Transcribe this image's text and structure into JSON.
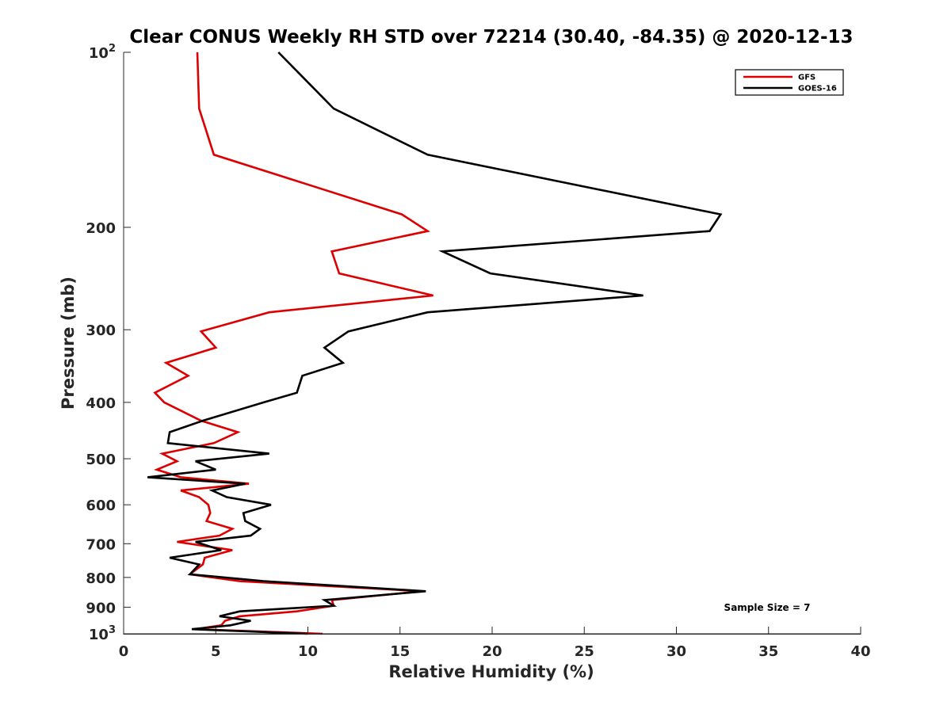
{
  "chart_data": {
    "type": "line",
    "title": "Clear CONUS Weekly RH STD over 72214 (30.40, -84.35) @ 2020-12-13",
    "xlabel": "Relative Humidity (%)",
    "ylabel": "Pressure (mb)",
    "xlim": [
      0,
      40
    ],
    "ylim": [
      100,
      1000
    ],
    "yscale": "log",
    "y_reversed": true,
    "x_ticks": [
      0,
      5,
      10,
      15,
      20,
      25,
      30,
      35,
      40
    ],
    "x_tick_labels": [
      "0",
      "5",
      "10",
      "15",
      "20",
      "25",
      "30",
      "35",
      "40"
    ],
    "y_ticks": [
      100,
      200,
      300,
      400,
      500,
      600,
      700,
      800,
      900,
      1000
    ],
    "y_tick_labels": [
      {
        "base": "10",
        "sup": "2"
      },
      "200",
      "300",
      "400",
      "500",
      "600",
      "700",
      "800",
      "900",
      {
        "base": "10",
        "sup": "3"
      }
    ],
    "legend_position": "top-right",
    "annotation": "Sample Size = 7",
    "series": [
      {
        "name": "GFS",
        "color": "#dd0000",
        "points": [
          [
            4.0,
            100
          ],
          [
            4.1,
            125
          ],
          [
            4.9,
            150
          ],
          [
            15.1,
            190
          ],
          [
            16.5,
            203
          ],
          [
            11.3,
            220
          ],
          [
            11.7,
            240
          ],
          [
            16.8,
            262
          ],
          [
            7.9,
            280
          ],
          [
            4.2,
            302
          ],
          [
            5.0,
            322
          ],
          [
            2.3,
            342
          ],
          [
            3.5,
            360
          ],
          [
            1.7,
            385
          ],
          [
            2.2,
            400
          ],
          [
            4.2,
            430
          ],
          [
            6.2,
            450
          ],
          [
            4.9,
            470
          ],
          [
            2.1,
            490
          ],
          [
            2.9,
            505
          ],
          [
            1.8,
            522
          ],
          [
            3.1,
            538
          ],
          [
            6.8,
            552
          ],
          [
            3.1,
            567
          ],
          [
            4.1,
            582
          ],
          [
            4.6,
            600
          ],
          [
            4.7,
            620
          ],
          [
            4.5,
            640
          ],
          [
            5.9,
            660
          ],
          [
            5.2,
            678
          ],
          [
            2.9,
            695
          ],
          [
            5.9,
            718
          ],
          [
            4.4,
            740
          ],
          [
            4.3,
            760
          ],
          [
            3.6,
            790
          ],
          [
            6.3,
            812
          ],
          [
            16.2,
            845
          ],
          [
            11.3,
            875
          ],
          [
            11.4,
            895
          ],
          [
            9.4,
            915
          ],
          [
            6.3,
            933
          ],
          [
            5.5,
            950
          ],
          [
            5.3,
            967
          ],
          [
            3.9,
            982
          ],
          [
            10.8,
            1000
          ]
        ]
      },
      {
        "name": "GOES-16",
        "color": "#000000",
        "points": [
          [
            8.4,
            100
          ],
          [
            11.4,
            125
          ],
          [
            16.5,
            150
          ],
          [
            32.4,
            190
          ],
          [
            31.8,
            203
          ],
          [
            17.3,
            220
          ],
          [
            19.9,
            240
          ],
          [
            28.2,
            262
          ],
          [
            16.5,
            280
          ],
          [
            12.2,
            302
          ],
          [
            10.9,
            322
          ],
          [
            11.9,
            342
          ],
          [
            9.7,
            360
          ],
          [
            9.4,
            385
          ],
          [
            7.6,
            400
          ],
          [
            4.3,
            430
          ],
          [
            2.5,
            450
          ],
          [
            2.4,
            470
          ],
          [
            7.9,
            490
          ],
          [
            3.9,
            505
          ],
          [
            5.0,
            522
          ],
          [
            1.3,
            538
          ],
          [
            6.6,
            552
          ],
          [
            4.8,
            567
          ],
          [
            5.6,
            582
          ],
          [
            8.0,
            600
          ],
          [
            6.5,
            620
          ],
          [
            6.6,
            640
          ],
          [
            7.4,
            660
          ],
          [
            6.9,
            678
          ],
          [
            3.9,
            695
          ],
          [
            5.3,
            718
          ],
          [
            2.5,
            740
          ],
          [
            4.1,
            760
          ],
          [
            3.6,
            790
          ],
          [
            7.6,
            812
          ],
          [
            16.4,
            845
          ],
          [
            10.9,
            875
          ],
          [
            11.4,
            895
          ],
          [
            6.3,
            915
          ],
          [
            5.2,
            933
          ],
          [
            6.9,
            950
          ],
          [
            5.8,
            967
          ],
          [
            3.7,
            982
          ],
          [
            10.0,
            1000
          ]
        ]
      }
    ]
  }
}
